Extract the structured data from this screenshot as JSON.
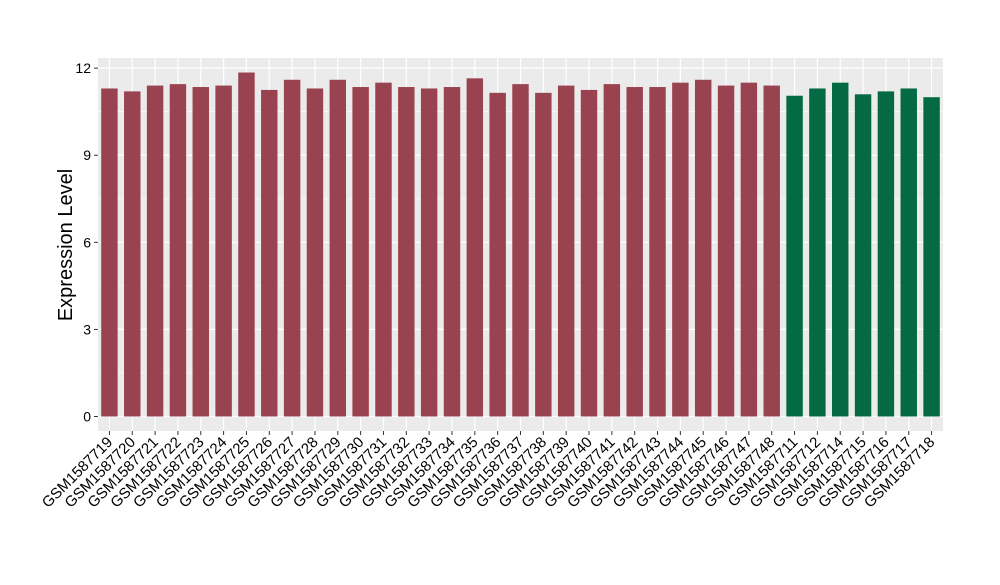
{
  "chart_data": {
    "type": "bar",
    "ylabel": "Expression Level",
    "xlabel": "",
    "ylim": [
      -0.5,
      12.35
    ],
    "yticks": [
      0,
      3,
      6,
      9,
      12
    ],
    "grid": true,
    "colors": {
      "group_a": "#9a4350",
      "group_b": "#046a44",
      "panel": "#ebebeb",
      "gridline": "#ffffff"
    },
    "categories": [
      "GSM1587719",
      "GSM1587720",
      "GSM1587721",
      "GSM1587722",
      "GSM1587723",
      "GSM1587724",
      "GSM1587725",
      "GSM1587726",
      "GSM1587727",
      "GSM1587728",
      "GSM1587729",
      "GSM1587730",
      "GSM1587731",
      "GSM1587732",
      "GSM1587733",
      "GSM1587734",
      "GSM1587735",
      "GSM1587736",
      "GSM1587737",
      "GSM1587738",
      "GSM1587739",
      "GSM1587740",
      "GSM1587741",
      "GSM1587742",
      "GSM1587743",
      "GSM1587744",
      "GSM1587745",
      "GSM1587746",
      "GSM1587747",
      "GSM1587748",
      "GSM1587711",
      "GSM1587712",
      "GSM1587714",
      "GSM1587715",
      "GSM1587716",
      "GSM1587717",
      "GSM1587718"
    ],
    "values": [
      11.3,
      11.2,
      11.4,
      11.45,
      11.35,
      11.4,
      11.85,
      11.25,
      11.6,
      11.3,
      11.6,
      11.35,
      11.5,
      11.35,
      11.3,
      11.35,
      11.65,
      11.15,
      11.45,
      11.15,
      11.4,
      11.25,
      11.45,
      11.35,
      11.35,
      11.5,
      11.6,
      11.4,
      11.5,
      11.4,
      11.05,
      11.3,
      11.5,
      11.1,
      11.2,
      11.3,
      11.0
    ],
    "groups": [
      "group_a",
      "group_a",
      "group_a",
      "group_a",
      "group_a",
      "group_a",
      "group_a",
      "group_a",
      "group_a",
      "group_a",
      "group_a",
      "group_a",
      "group_a",
      "group_a",
      "group_a",
      "group_a",
      "group_a",
      "group_a",
      "group_a",
      "group_a",
      "group_a",
      "group_a",
      "group_a",
      "group_a",
      "group_a",
      "group_a",
      "group_a",
      "group_a",
      "group_a",
      "group_a",
      "group_b",
      "group_b",
      "group_b",
      "group_b",
      "group_b",
      "group_b",
      "group_b"
    ]
  }
}
